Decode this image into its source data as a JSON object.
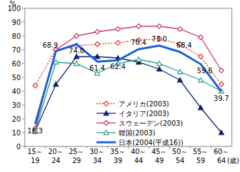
{
  "chart_data": {
    "type": "line",
    "y_label": "%",
    "x_label": "(歳)",
    "categories": [
      "15～19",
      "20～24",
      "25～29",
      "30～34",
      "35～39",
      "40～44",
      "45～49",
      "50～54",
      "55～59",
      "60～64"
    ],
    "ylim": [
      0,
      100
    ],
    "yticks": [
      0,
      10,
      20,
      30,
      40,
      50,
      60,
      70,
      80,
      90,
      100
    ],
    "grid": false,
    "legend": "lower right",
    "series": [
      {
        "name": "アメリカ(2003)",
        "color": "#e03030",
        "marker": "diamond",
        "line_style": "dotted",
        "values": [
          44,
          70,
          73,
          74,
          75,
          77,
          78,
          74,
          65,
          45
        ]
      },
      {
        "name": "イタリア(2003)",
        "color": "#101e6e",
        "marker": "triangle",
        "line_style": "solid",
        "values": [
          11,
          45,
          65,
          65,
          64,
          61,
          56,
          48,
          28,
          10
        ]
      },
      {
        "name": "スウェーデン(2003)",
        "color": "#c83070",
        "marker": "diamond",
        "line_style": "solid",
        "values": [
          13,
          70,
          80,
          83,
          85,
          87,
          87,
          85,
          79,
          55
        ]
      },
      {
        "name": "韓国(2003)",
        "color": "#2a9a8a",
        "marker": "triangle-open",
        "line_style": "solid",
        "values": [
          11,
          61,
          60,
          53,
          60,
          63,
          60,
          54,
          48,
          40
        ]
      },
      {
        "name": "日本(2004(平成16))",
        "color": "#1a5fd8",
        "marker": "none",
        "line_style": "thick",
        "data_labels": true,
        "values": [
          16.3,
          68.9,
          74.0,
          61.4,
          62.4,
          70.4,
          73.0,
          68.4,
          59.6,
          39.7
        ],
        "value_labels": [
          "16.3",
          "68.9",
          "74.0",
          "61.4",
          "62.4",
          "70.4",
          "73.0",
          "68.4",
          "59.6",
          "39.7"
        ]
      }
    ]
  }
}
